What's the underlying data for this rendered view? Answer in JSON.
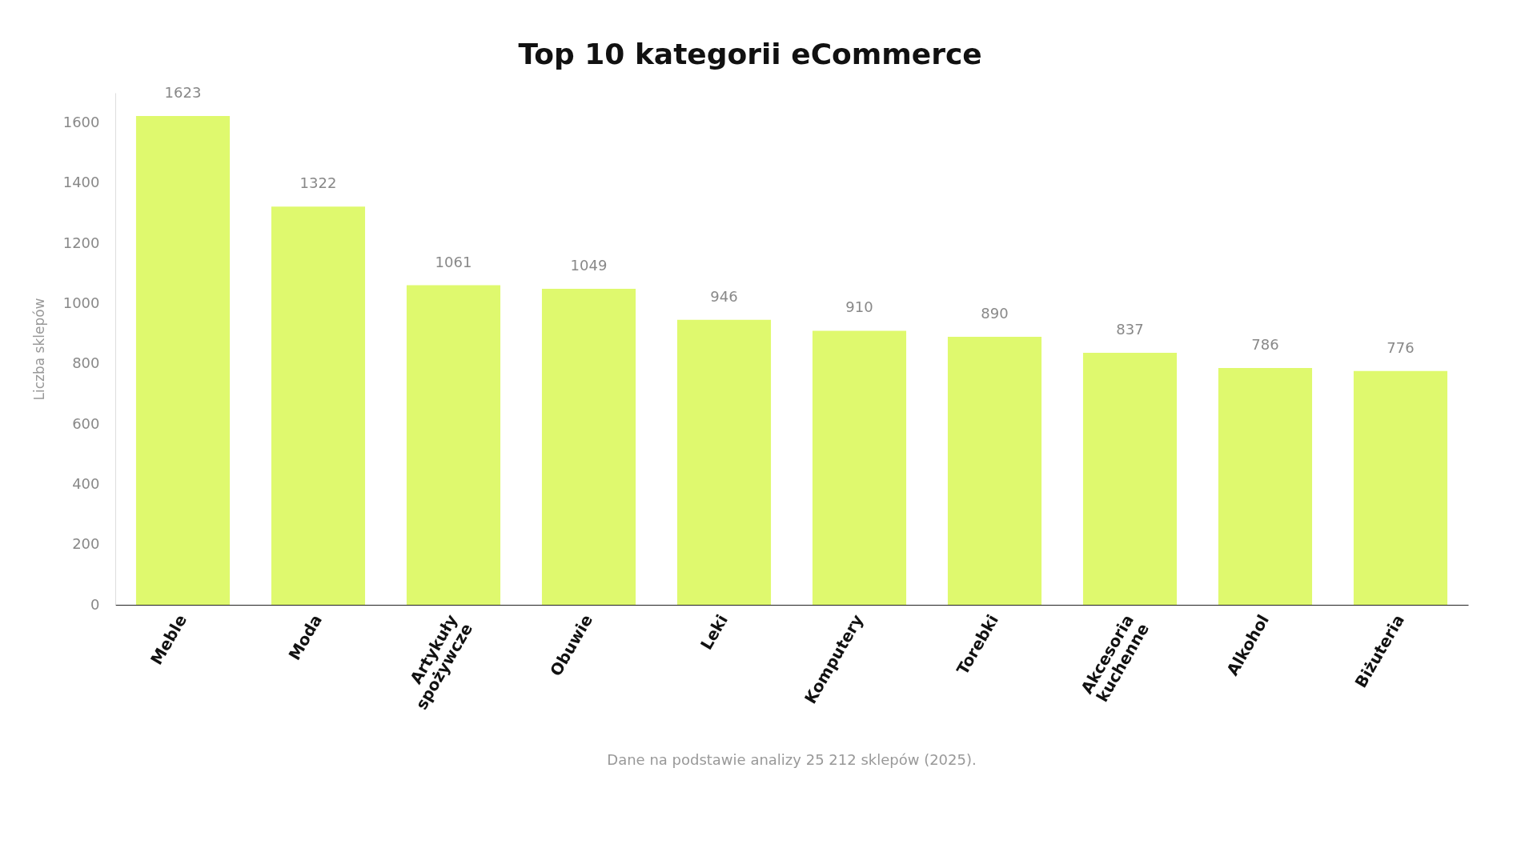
{
  "chart_data": {
    "type": "bar",
    "title": "Top 10 kategorii eCommerce",
    "ylabel": "Liczba sklepów",
    "categories": [
      "Meble",
      "Moda",
      "Artykuły spożywcze",
      "Obuwie",
      "Leki",
      "Komputery",
      "Torebki",
      "Akcesoria kuchenne",
      "Alkohol",
      "Biżuteria"
    ],
    "values": [
      1623,
      1322,
      1061,
      1049,
      946,
      910,
      890,
      837,
      786,
      776
    ],
    "color": "#dff96e",
    "ylim": [
      0,
      1700
    ],
    "yticks": [
      0,
      200,
      400,
      600,
      800,
      1000,
      1200,
      1400,
      1600
    ],
    "data_labels": true,
    "grid": false,
    "annotations": [
      "Dane na podstawie analizy 25 212 sklepów (2025)."
    ]
  }
}
